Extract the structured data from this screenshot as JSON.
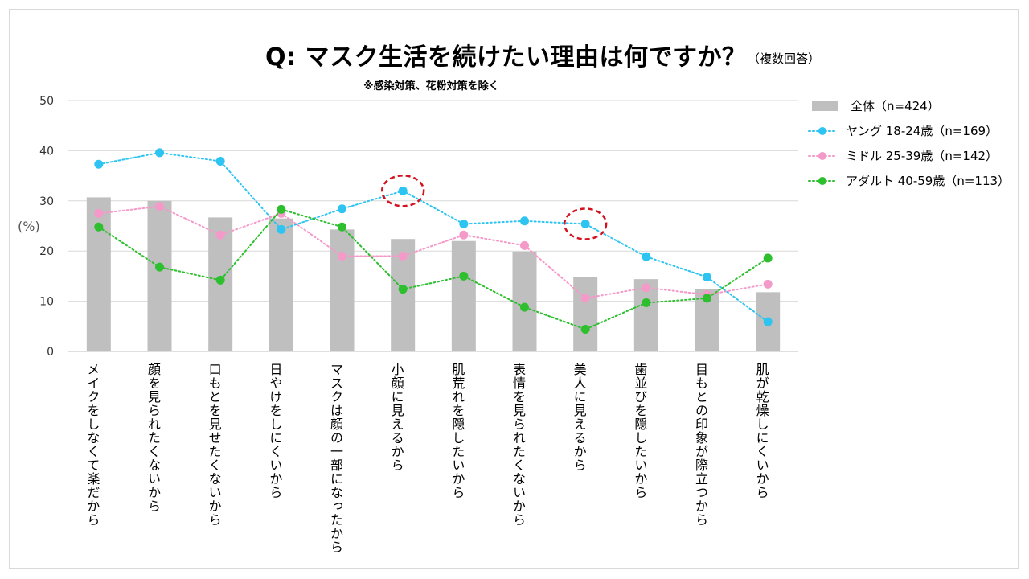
{
  "title": "Q: マスク生活を続けたい理由は何ですか？",
  "title_note": "（複数回答）",
  "subtitle": "※感染対策、花粉対策を除く",
  "y_unit": "(%)",
  "colors": {
    "bar": "#bfbfbf",
    "young": "#2ec4f1",
    "middle": "#f49ac9",
    "adult": "#2dbf2d",
    "highlight": "#d4111e",
    "grid": "#d9d9d9"
  },
  "chart_data": {
    "type": "bar",
    "categories": [
      "メイクをしなくて楽だから",
      "顔を見られたくないから",
      "口もとを見せたくないから",
      "日やけをしにくいから",
      "マスクは顔の一部になったから",
      "小顔に見えるから",
      "肌荒れを隠したいから",
      "表情を見られたくないから",
      "美人に見えるから",
      "歯並びを隠したいから",
      "目もとの印象が際立つから",
      "肌が乾燥しにくいから"
    ],
    "series": [
      {
        "name": "全体（n=424）",
        "type": "bar",
        "color_key": "bar",
        "values": [
          30.7,
          30.0,
          26.7,
          26.5,
          24.3,
          22.4,
          22.0,
          19.9,
          14.9,
          14.4,
          12.5,
          11.8
        ]
      },
      {
        "name": "ヤング 18-24歳（n=169）",
        "type": "line",
        "color_key": "young",
        "values": [
          37.3,
          39.6,
          37.9,
          24.3,
          28.4,
          32.0,
          25.4,
          26.0,
          25.4,
          18.9,
          14.8,
          5.9
        ]
      },
      {
        "name": "ミドル 25-39歳（n=142）",
        "type": "line",
        "color_key": "middle",
        "values": [
          27.5,
          28.9,
          23.2,
          27.5,
          19.0,
          19.0,
          23.2,
          21.1,
          10.6,
          12.7,
          11.3,
          13.4
        ]
      },
      {
        "name": "アダルト 40-59歳（n=113）",
        "type": "line",
        "color_key": "adult",
        "values": [
          24.8,
          16.8,
          14.2,
          28.3,
          24.8,
          12.4,
          15.0,
          8.8,
          4.4,
          9.7,
          10.6,
          18.6
        ]
      }
    ],
    "ylim": [
      0,
      50
    ],
    "yticks": [
      "0",
      "10",
      "20",
      "30",
      "40",
      "50"
    ],
    "grid": true,
    "legend_position": "right",
    "highlighted": [
      {
        "series": "ヤング 18-24歳（n=169）",
        "category": "小顔に見えるから"
      },
      {
        "series": "ヤング 18-24歳（n=169）",
        "category": "美人に見えるから"
      }
    ]
  }
}
